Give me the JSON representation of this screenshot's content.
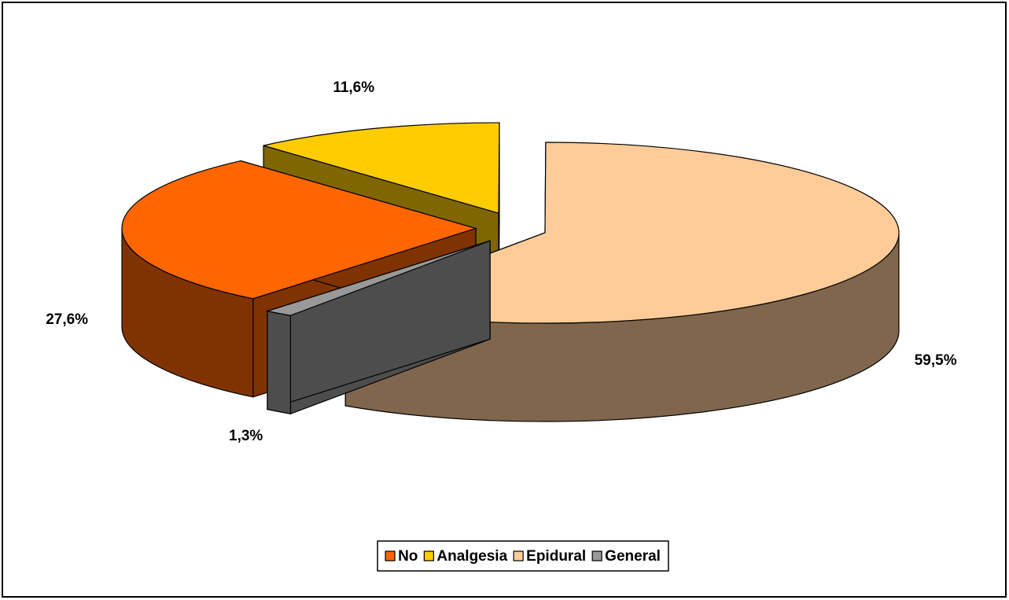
{
  "chart_data": {
    "type": "pie3d",
    "categories": [
      "No",
      "Analgesia",
      "Epidural",
      "General"
    ],
    "values": [
      27.6,
      11.6,
      59.5,
      1.3
    ],
    "value_labels": [
      "27,6%",
      "11,6%",
      "59,5%",
      "1,3%"
    ],
    "colors": [
      "#ff6600",
      "#ffcc00",
      "#ffcc99",
      "#999999"
    ],
    "legend": "bottom"
  }
}
